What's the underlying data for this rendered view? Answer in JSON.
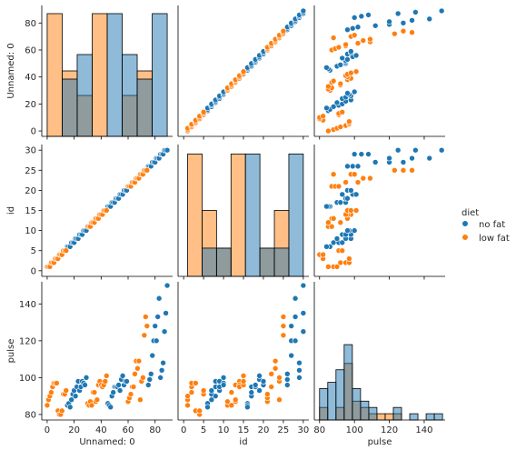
{
  "chart_data": {
    "type": "pairplot",
    "hue": "diet",
    "variables": [
      "Unnamed: 0",
      "id",
      "pulse"
    ],
    "legend": {
      "title": "diet",
      "placement": "center-right",
      "entries": [
        {
          "label": "no fat",
          "color": "#1f77b4"
        },
        {
          "label": "low fat",
          "color": "#ff7f0e"
        }
      ]
    },
    "colors": {
      "no fat": "#1f77b4",
      "low fat": "#ff7f0e"
    },
    "axes": {
      "Unnamed: 0": {
        "label": "Unnamed: 0",
        "range": [
          -4,
          93
        ],
        "ticks": [
          0,
          20,
          40,
          60,
          80
        ]
      },
      "id": {
        "label": "id",
        "range": [
          -1.4,
          31.4
        ],
        "ticks": [
          0,
          5,
          10,
          15,
          20,
          25,
          30
        ]
      },
      "pulse": {
        "label": "pulse",
        "range": [
          77,
          152
        ],
        "ticks": [
          80,
          100,
          120,
          140
        ]
      }
    },
    "series": [
      {
        "name": "no fat",
        "rows": [
          [
            15,
            6,
            85
          ],
          [
            16,
            6,
            86
          ],
          [
            17,
            6,
            84
          ],
          [
            18,
            7,
            88
          ],
          [
            19,
            7,
            91
          ],
          [
            20,
            7,
            93
          ],
          [
            21,
            8,
            90
          ],
          [
            22,
            8,
            95
          ],
          [
            23,
            8,
            98
          ],
          [
            24,
            9,
            93
          ],
          [
            25,
            9,
            95
          ],
          [
            26,
            9,
            98
          ],
          [
            27,
            10,
            97
          ],
          [
            28,
            10,
            96
          ],
          [
            29,
            10,
            100
          ],
          [
            45,
            16,
            86
          ],
          [
            46,
            16,
            85
          ],
          [
            47,
            16,
            84
          ],
          [
            48,
            17,
            90
          ],
          [
            49,
            17,
            92
          ],
          [
            50,
            17,
            95
          ],
          [
            51,
            18,
            95
          ],
          [
            52,
            18,
            95
          ],
          [
            53,
            18,
            96
          ],
          [
            54,
            19,
            93
          ],
          [
            55,
            19,
            99
          ],
          [
            56,
            19,
            101
          ],
          [
            57,
            20,
            96
          ],
          [
            58,
            20,
            98
          ],
          [
            59,
            20,
            98
          ],
          [
            75,
            26,
            96
          ],
          [
            76,
            26,
            99
          ],
          [
            77,
            26,
            102
          ],
          [
            78,
            27,
            112
          ],
          [
            79,
            27,
            120
          ],
          [
            80,
            27,
            128
          ],
          [
            81,
            28,
            120
          ],
          [
            82,
            28,
            133
          ],
          [
            83,
            28,
            143
          ],
          [
            84,
            29,
            100
          ],
          [
            85,
            29,
            104
          ],
          [
            86,
            29,
            108
          ],
          [
            87,
            30,
            125
          ],
          [
            88,
            30,
            135
          ],
          [
            89,
            30,
            150
          ]
        ]
      },
      {
        "name": "low fat",
        "rows": [
          [
            0,
            1,
            85
          ],
          [
            1,
            1,
            88
          ],
          [
            2,
            1,
            90
          ],
          [
            3,
            2,
            92
          ],
          [
            4,
            2,
            95
          ],
          [
            5,
            2,
            97
          ],
          [
            6,
            3,
            97
          ],
          [
            7,
            3,
            97
          ],
          [
            8,
            3,
            82
          ],
          [
            9,
            4,
            80
          ],
          [
            10,
            4,
            80
          ],
          [
            11,
            4,
            82
          ],
          [
            12,
            5,
            91
          ],
          [
            13,
            5,
            91
          ],
          [
            14,
            5,
            93
          ],
          [
            30,
            11,
            86
          ],
          [
            31,
            11,
            85
          ],
          [
            32,
            11,
            87
          ],
          [
            33,
            12,
            85
          ],
          [
            34,
            12,
            92
          ],
          [
            35,
            12,
            92
          ],
          [
            36,
            13,
            87
          ],
          [
            37,
            13,
            88
          ],
          [
            38,
            13,
            96
          ],
          [
            39,
            14,
            98
          ],
          [
            40,
            14,
            96
          ],
          [
            41,
            14,
            95
          ],
          [
            42,
            15,
            96
          ],
          [
            43,
            15,
            98
          ],
          [
            44,
            15,
            101
          ],
          [
            60,
            21,
            87
          ],
          [
            61,
            21,
            89
          ],
          [
            62,
            21,
            91
          ],
          [
            63,
            22,
            95
          ],
          [
            64,
            22,
            95
          ],
          [
            65,
            22,
            102
          ],
          [
            66,
            23,
            109
          ],
          [
            67,
            23,
            105
          ],
          [
            68,
            23,
            109
          ],
          [
            69,
            24,
            88
          ],
          [
            70,
            24,
            98
          ],
          [
            71,
            24,
            100
          ],
          [
            72,
            25,
            123
          ],
          [
            73,
            25,
            133
          ],
          [
            74,
            25,
            128
          ]
        ]
      }
    ],
    "histograms": {
      "Unnamed: 0": {
        "bin_edges": [
          0,
          11.125,
          22.25,
          33.375,
          44.5,
          55.625,
          66.75,
          77.875,
          89
        ],
        "counts": {
          "no fat": [
            0,
            14,
            20,
            0,
            30,
            20,
            14,
            30
          ],
          "low fat": [
            30,
            16,
            10,
            30,
            0,
            10,
            16,
            0
          ]
        },
        "ylim": [
          0,
          32
        ]
      },
      "id": {
        "bin_edges": [
          1,
          4.625,
          8.25,
          11.875,
          15.5,
          19.125,
          22.75,
          26.375,
          30
        ],
        "counts": {
          "no fat": [
            0,
            3,
            3,
            0,
            13,
            3,
            3,
            13
          ],
          "low fat": [
            13,
            7,
            3,
            13,
            0,
            3,
            7,
            0
          ]
        },
        "ylim": [
          0,
          14
        ]
      },
      "pulse": {
        "bin_edges": [
          80,
          84.7,
          89.4,
          94.1,
          98.8,
          103.5,
          108.2,
          112.9,
          117.6,
          122.3,
          127,
          131.7,
          136.4,
          141.1,
          145.8,
          150.5
        ],
        "counts": {
          "no fat": [
            5,
            6,
            8,
            12,
            5,
            3,
            2,
            0,
            0,
            2,
            0,
            1,
            0,
            1,
            1
          ],
          "low fat": [
            2,
            0,
            2,
            9,
            3,
            2,
            1,
            1,
            1,
            1,
            0,
            0,
            0,
            0,
            0
          ]
        },
        "ylim": [
          0,
          22
        ]
      }
    }
  }
}
